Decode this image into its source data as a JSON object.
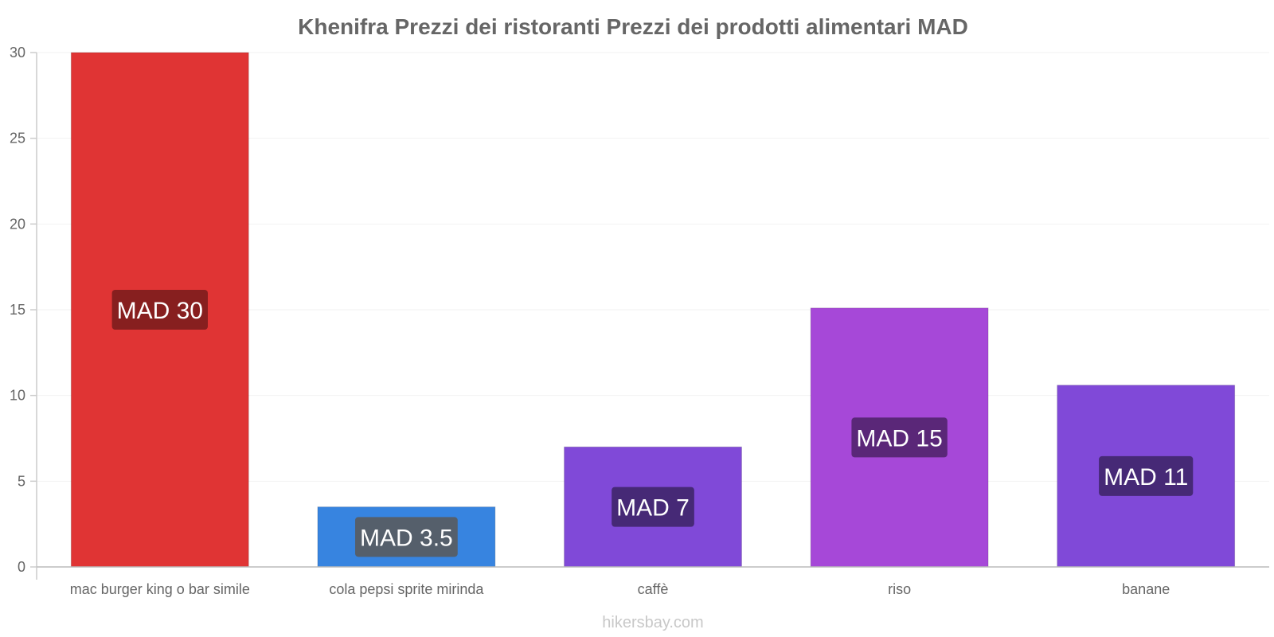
{
  "chart_data": {
    "type": "bar",
    "title": "Khenifra Prezzi dei ristoranti Prezzi dei prodotti alimentari MAD",
    "categories": [
      "mac burger king o bar simile",
      "cola pepsi sprite mirinda",
      "caffè",
      "riso",
      "banane"
    ],
    "values": [
      30,
      3.5,
      7,
      15.1,
      10.6
    ],
    "data_labels": [
      "MAD 30",
      "MAD 3.5",
      "MAD 7",
      "MAD 15",
      "MAD 11"
    ],
    "colors": [
      "#e03434",
      "#3784e0",
      "#8049d8",
      "#a648d8",
      "#8049d8"
    ],
    "label_bg_colors": [
      "#7a1c1c",
      "#5a5a5a",
      "#3e2468",
      "#50226a",
      "#3e2468"
    ],
    "y_ticks": [
      0,
      5,
      10,
      15,
      20,
      25,
      30
    ],
    "ylim": [
      0,
      30
    ],
    "xlabel": "",
    "ylabel": "",
    "grid": true
  },
  "source": "hikersbay.com"
}
